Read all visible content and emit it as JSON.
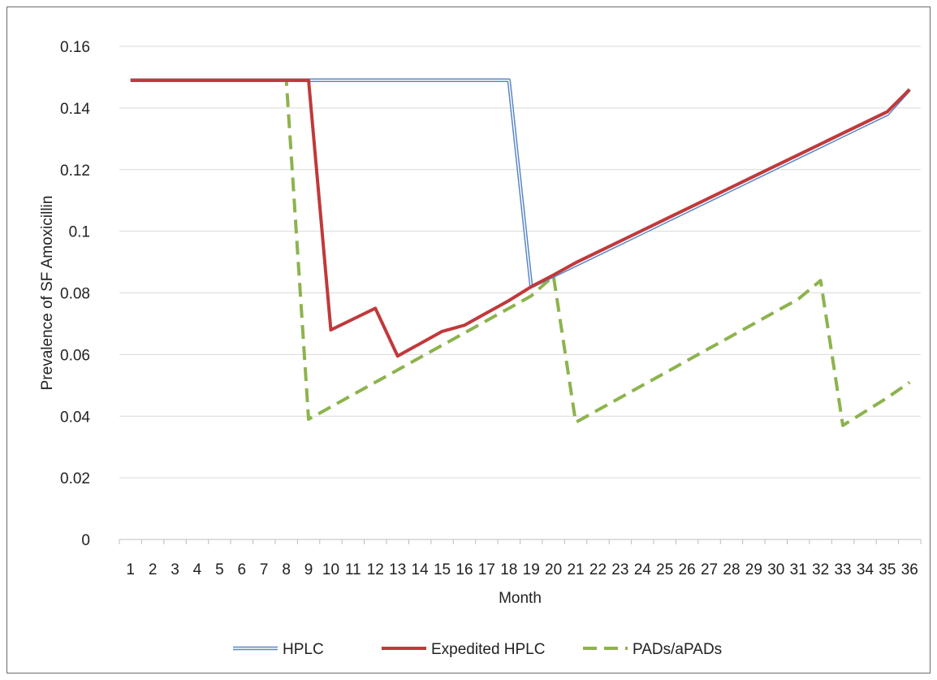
{
  "chart_data": {
    "type": "line",
    "title": "",
    "xlabel": "Month",
    "ylabel": "Prevalence of SF Amoxicillin",
    "x": [
      1,
      2,
      3,
      4,
      5,
      6,
      7,
      8,
      9,
      10,
      11,
      12,
      13,
      14,
      15,
      16,
      17,
      18,
      19,
      20,
      21,
      22,
      23,
      24,
      25,
      26,
      27,
      28,
      29,
      30,
      31,
      32,
      33,
      34,
      35,
      36
    ],
    "ylim": [
      0,
      0.16
    ],
    "yticks": [
      "0",
      "0.02",
      "0.04",
      "0.06",
      "0.08",
      "0.1",
      "0.12",
      "0.14",
      "0.16"
    ],
    "grid": true,
    "legend_position": "bottom",
    "series": [
      {
        "name": "HPLC",
        "color": "#5b86c5",
        "style": "double",
        "values": [
          0.149,
          0.149,
          0.149,
          0.149,
          0.149,
          0.149,
          0.149,
          0.149,
          0.149,
          0.149,
          0.149,
          0.149,
          0.149,
          0.149,
          0.149,
          0.149,
          0.149,
          0.149,
          0.082,
          0.0855,
          0.089,
          0.0925,
          0.096,
          0.0995,
          0.103,
          0.1065,
          0.11,
          0.1135,
          0.117,
          0.1205,
          0.124,
          0.1275,
          0.131,
          0.1345,
          0.138,
          0.146
        ]
      },
      {
        "name": "Expedited HPLC",
        "color": "#c0393b",
        "style": "solid",
        "values": [
          0.149,
          0.149,
          0.149,
          0.149,
          0.149,
          0.149,
          0.149,
          0.149,
          0.149,
          0.068,
          0.0715,
          0.075,
          0.0595,
          0.0635,
          0.0675,
          0.0695,
          0.0735,
          0.0775,
          0.082,
          0.0858,
          0.0898,
          0.0933,
          0.0968,
          0.1003,
          0.1038,
          0.1073,
          0.1108,
          0.1143,
          0.1178,
          0.1213,
          0.1248,
          0.1283,
          0.1318,
          0.1353,
          0.1388,
          0.146
        ]
      },
      {
        "name": "PADs/aPADs",
        "color": "#8db34d",
        "style": "dashed",
        "values": [
          0.149,
          0.149,
          0.149,
          0.149,
          0.149,
          0.149,
          0.149,
          0.149,
          0.039,
          0.043,
          0.047,
          0.051,
          0.055,
          0.059,
          0.063,
          0.067,
          0.071,
          0.075,
          0.079,
          0.0855,
          0.038,
          0.042,
          0.046,
          0.05,
          0.054,
          0.058,
          0.062,
          0.066,
          0.07,
          0.074,
          0.078,
          0.084,
          0.037,
          0.0415,
          0.046,
          0.051
        ]
      }
    ]
  }
}
